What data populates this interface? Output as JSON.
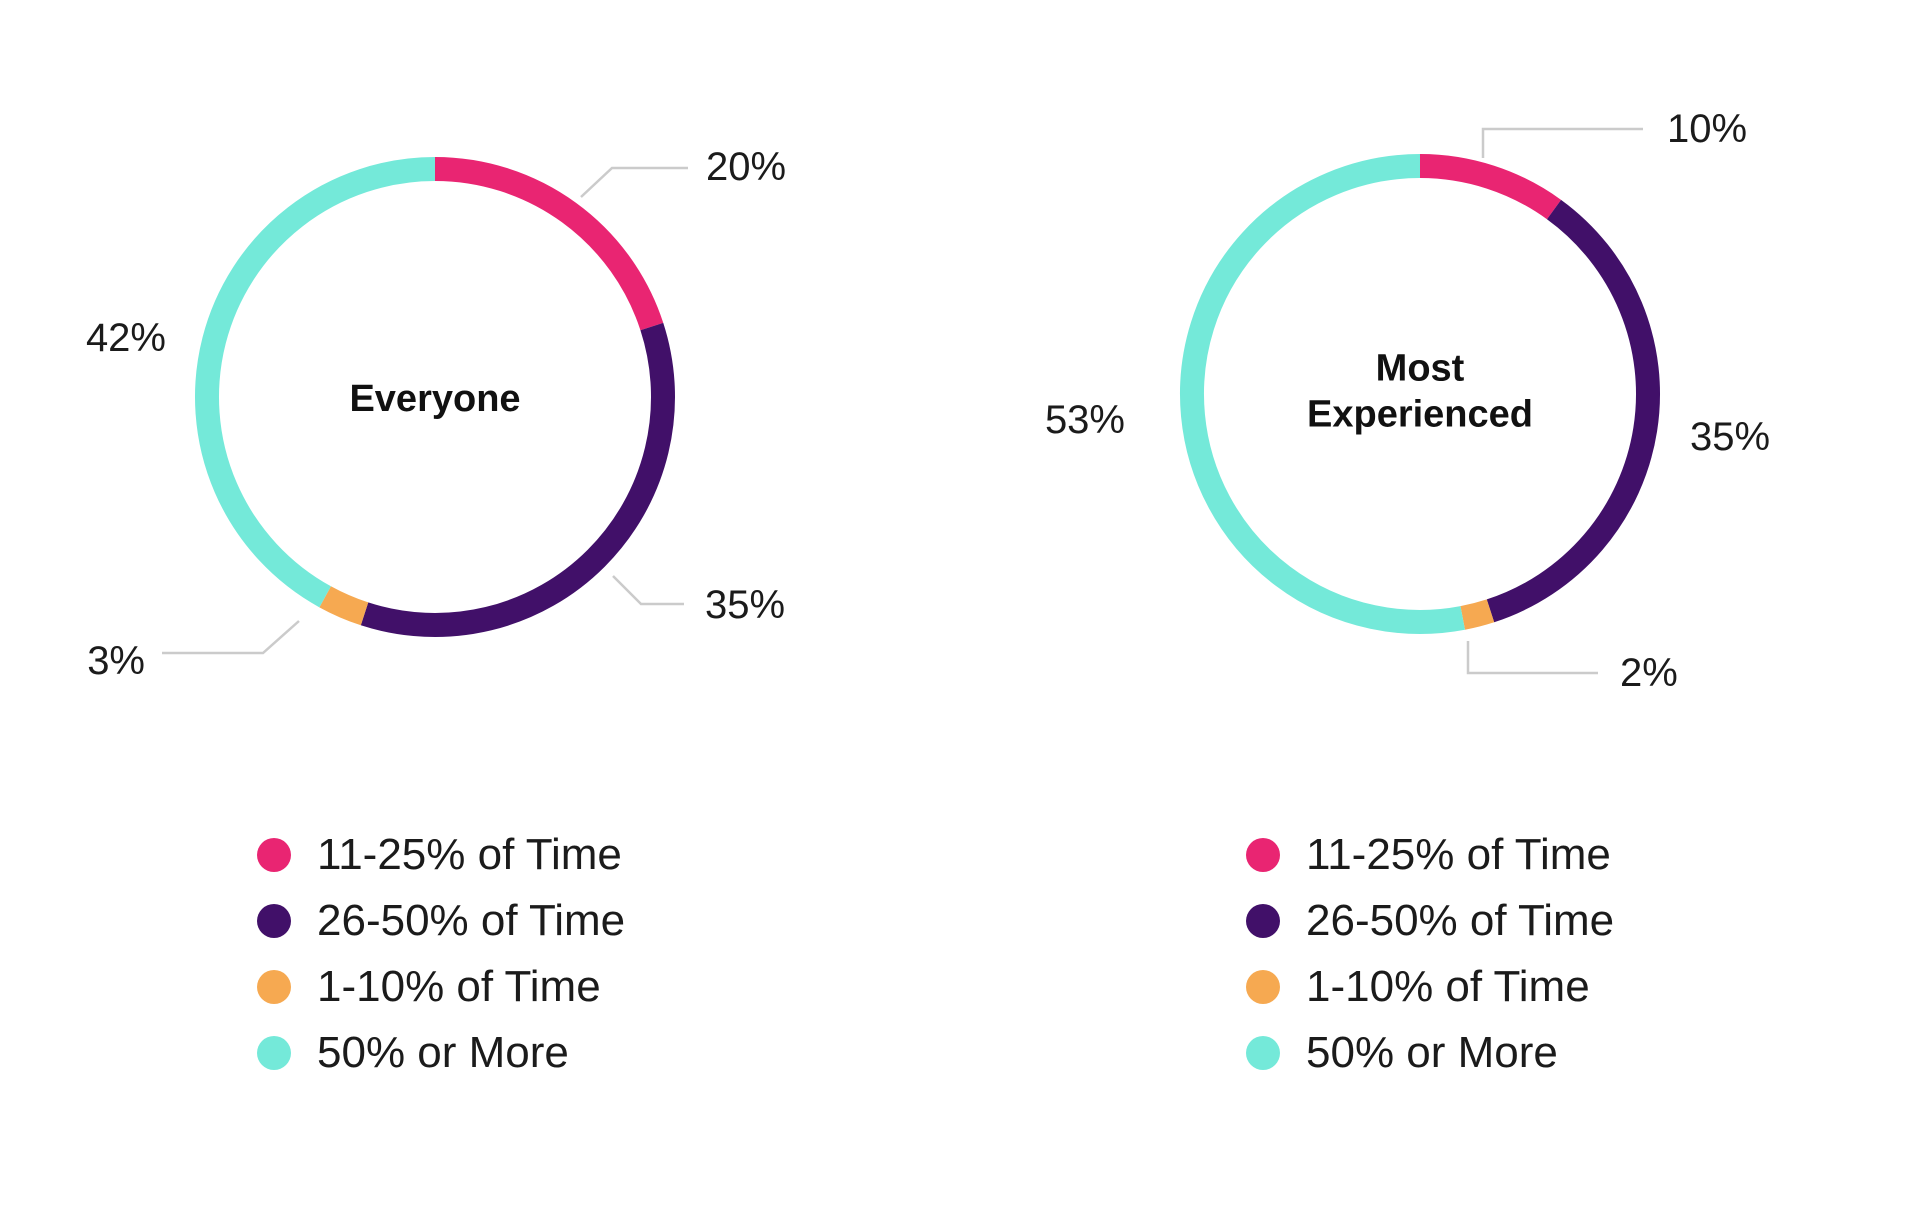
{
  "palette": {
    "pink": "#E92572",
    "purple": "#411069",
    "orange": "#F6A951",
    "turquoise": "#74E9D9",
    "leader_line": "#CBCBCB",
    "text": "#1B1B1B"
  },
  "chart_data": [
    {
      "type": "pie",
      "subtype": "donut",
      "title": "Everyone",
      "legend_position": "bottom",
      "total": 100,
      "segments": [
        {
          "legend_label": "11-25% of Time",
          "color_key": "pink",
          "value": 20,
          "display": "20%"
        },
        {
          "legend_label": "26-50% of Time",
          "color_key": "purple",
          "value": 35,
          "display": "35%"
        },
        {
          "legend_label": "1-10% of Time",
          "color_key": "orange",
          "value": 3,
          "display": "3%"
        },
        {
          "legend_label": "50% or More",
          "color_key": "turquoise",
          "value": 42,
          "display": "42%"
        }
      ],
      "legend": [
        {
          "label": "11-25% of Time",
          "color_key": "pink"
        },
        {
          "label": "26-50% of Time",
          "color_key": "purple"
        },
        {
          "label": "1-10% of Time",
          "color_key": "orange"
        },
        {
          "label": "50% or More",
          "color_key": "turquoise"
        }
      ]
    },
    {
      "type": "pie",
      "subtype": "donut",
      "title": "Most Experienced",
      "legend_position": "bottom",
      "total": 100,
      "segments": [
        {
          "legend_label": "11-25% of Time",
          "color_key": "pink",
          "value": 10,
          "display": "10%"
        },
        {
          "legend_label": "26-50% of Time",
          "color_key": "purple",
          "value": 35,
          "display": "35%"
        },
        {
          "legend_label": "1-10% of Time",
          "color_key": "orange",
          "value": 2,
          "display": "2%"
        },
        {
          "legend_label": "50% or More",
          "color_key": "turquoise",
          "value": 53,
          "display": "53%"
        }
      ],
      "legend": [
        {
          "label": "11-25% of Time",
          "color_key": "pink"
        },
        {
          "label": "26-50% of Time",
          "color_key": "purple"
        },
        {
          "label": "1-10% of Time",
          "color_key": "orange"
        },
        {
          "label": "50% or More",
          "color_key": "turquoise"
        }
      ]
    }
  ]
}
